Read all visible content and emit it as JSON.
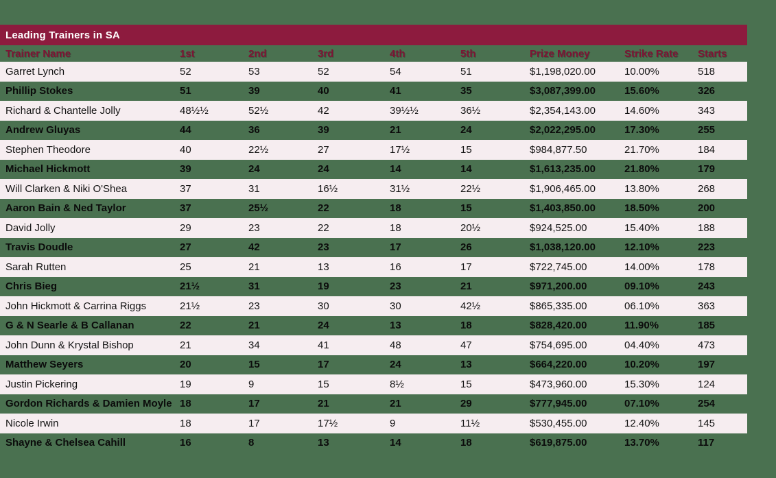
{
  "colors": {
    "page_background": "#4a7150",
    "title_bar_background": "#8d1b3e",
    "title_text": "#ffffff",
    "column_header_text": "#7e1434",
    "row_light_background": "#f6edf0",
    "row_text": "#141414"
  },
  "chart_data": {
    "type": "table",
    "title": "Leading Trainers in SA",
    "columns": [
      "Trainer Name",
      "1st",
      "2nd",
      "3rd",
      "4th",
      "5th",
      "Prize Money",
      "Strike Rate",
      "Starts"
    ],
    "rows": [
      [
        "Garret Lynch",
        "52",
        "53",
        "52",
        "54",
        "51",
        "$1,198,020.00",
        "10.00%",
        "518"
      ],
      [
        "Phillip Stokes",
        "51",
        "39",
        "40",
        "41",
        "35",
        "$3,087,399.00",
        "15.60%",
        "326"
      ],
      [
        "Richard & Chantelle Jolly",
        "48½½",
        "52½",
        "42",
        "39½½",
        "36½",
        "$2,354,143.00",
        "14.60%",
        "343"
      ],
      [
        "Andrew Gluyas",
        "44",
        "36",
        "39",
        "21",
        "24",
        "$2,022,295.00",
        "17.30%",
        "255"
      ],
      [
        "Stephen Theodore",
        "40",
        "22½",
        "27",
        "17½",
        "15",
        "$984,877.50",
        "21.70%",
        "184"
      ],
      [
        "Michael Hickmott",
        "39",
        "24",
        "24",
        "14",
        "14",
        "$1,613,235.00",
        "21.80%",
        "179"
      ],
      [
        "Will Clarken & Niki O'Shea",
        "37",
        "31",
        "16½",
        "31½",
        "22½",
        "$1,906,465.00",
        "13.80%",
        "268"
      ],
      [
        "Aaron Bain & Ned Taylor",
        "37",
        "25½",
        "22",
        "18",
        "15",
        "$1,403,850.00",
        "18.50%",
        "200"
      ],
      [
        "David Jolly",
        "29",
        "23",
        "22",
        "18",
        "20½",
        "$924,525.00",
        "15.40%",
        "188"
      ],
      [
        "Travis Doudle",
        "27",
        "42",
        "23",
        "17",
        "26",
        "$1,038,120.00",
        "12.10%",
        "223"
      ],
      [
        "Sarah Rutten",
        "25",
        "21",
        "13",
        "16",
        "17",
        "$722,745.00",
        "14.00%",
        "178"
      ],
      [
        "Chris Bieg",
        "21½",
        "31",
        "19",
        "23",
        "21",
        "$971,200.00",
        "09.10%",
        "243"
      ],
      [
        "John Hickmott & Carrina Riggs",
        "21½",
        "23",
        "30",
        "30",
        "42½",
        "$865,335.00",
        "06.10%",
        "363"
      ],
      [
        "G & N Searle & B Callanan",
        "22",
        "21",
        "24",
        "13",
        "18",
        "$828,420.00",
        "11.90%",
        "185"
      ],
      [
        "John Dunn & Krystal Bishop",
        "21",
        "34",
        "41",
        "48",
        "47",
        "$754,695.00",
        "04.40%",
        "473"
      ],
      [
        "Matthew Seyers",
        "20",
        "15",
        "17",
        "24",
        "13",
        "$664,220.00",
        "10.20%",
        "197"
      ],
      [
        "Justin Pickering",
        "19",
        "9",
        "15",
        "8½",
        "15",
        "$473,960.00",
        "15.30%",
        "124"
      ],
      [
        "Gordon Richards & Damien Moyle",
        "18",
        "17",
        "21",
        "21",
        "29",
        "$777,945.00",
        "07.10%",
        "254"
      ],
      [
        "Nicole Irwin",
        "18",
        "17",
        "17½",
        "9",
        "11½",
        "$530,455.00",
        "12.40%",
        "145"
      ],
      [
        "Shayne & Chelsea Cahill",
        "16",
        "8",
        "13",
        "14",
        "18",
        "$619,875.00",
        "13.70%",
        "117"
      ]
    ]
  }
}
